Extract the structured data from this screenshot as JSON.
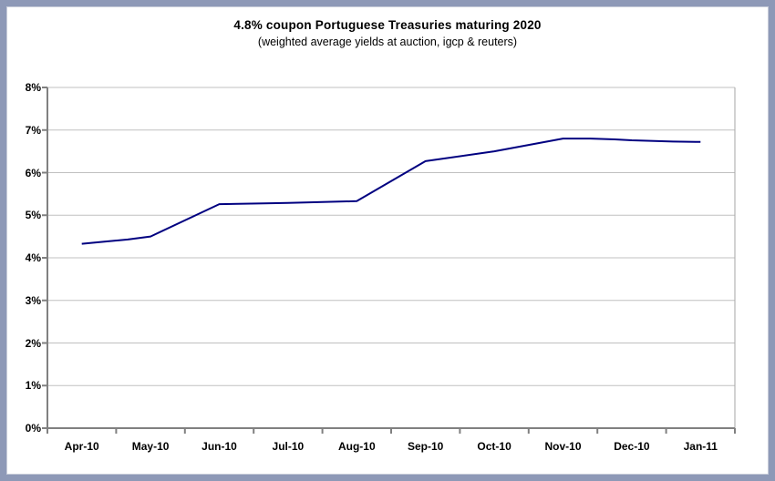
{
  "chart_data": {
    "type": "line",
    "title": "4.8% coupon Portuguese Treasuries maturing 2020",
    "subtitle": "(weighted average yields at auction, igcp & reuters)",
    "x_tick_labels": [
      "Apr-10",
      "May-10",
      "Jun-10",
      "Jul-10",
      "Aug-10",
      "Sep-10",
      "Oct-10",
      "Nov-10",
      "Dec-10",
      "Jan-11"
    ],
    "y_tick_labels": [
      "0%",
      "1%",
      "2%",
      "3%",
      "4%",
      "5%",
      "6%",
      "7%",
      "8%"
    ],
    "ylim": [
      0,
      8
    ],
    "y_step": 1,
    "grid": "horizontal",
    "legend": "none",
    "monthly_yields_pct": {
      "Apr-10": 4.33,
      "May-10": 4.5,
      "Jun-10": 5.26,
      "Jul-10": 5.29,
      "Aug-10": 5.33,
      "Sep-10": 6.27,
      "Oct-10": 6.5,
      "Nov-10": 6.8,
      "Dec-10": 6.76,
      "Jan-11": 6.72
    },
    "series": [
      {
        "name": "weighted average yield at auction",
        "color": "#000080",
        "points": [
          {
            "x": 0.0,
            "y": 4.33
          },
          {
            "x": 0.33,
            "y": 4.38
          },
          {
            "x": 0.67,
            "y": 4.43
          },
          {
            "x": 1.0,
            "y": 4.5
          },
          {
            "x": 2.0,
            "y": 5.26
          },
          {
            "x": 2.65,
            "y": 5.28
          },
          {
            "x": 3.0,
            "y": 5.29
          },
          {
            "x": 3.5,
            "y": 5.31
          },
          {
            "x": 4.0,
            "y": 5.33
          },
          {
            "x": 5.0,
            "y": 6.27
          },
          {
            "x": 6.0,
            "y": 6.5
          },
          {
            "x": 7.0,
            "y": 6.8
          },
          {
            "x": 7.4,
            "y": 6.8
          },
          {
            "x": 7.75,
            "y": 6.78
          },
          {
            "x": 8.0,
            "y": 6.76
          },
          {
            "x": 8.6,
            "y": 6.73
          },
          {
            "x": 9.0,
            "y": 6.72
          }
        ]
      }
    ],
    "colors": {
      "line": "#000080",
      "gridline": "#c0c0c0",
      "axis": "#808080",
      "plot_right_border": "#a6a6a6",
      "frame": "#8e99b7",
      "frame_inner_line": "#c6cbd8",
      "background": "#ffffff"
    }
  }
}
